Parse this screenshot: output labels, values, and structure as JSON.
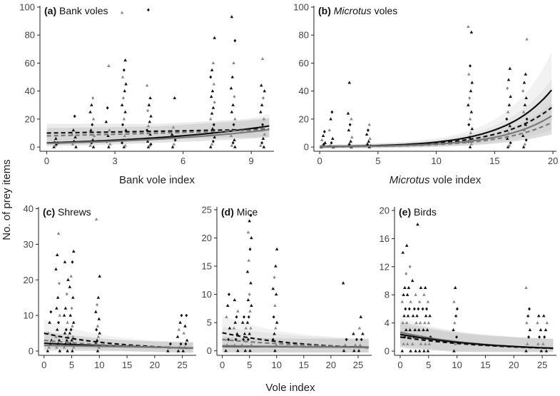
{
  "figure": {
    "shared_ylabel": "No. of prey items",
    "shared_xlabel_bottom": "Vole index"
  },
  "chart_data": [
    {
      "type": "scatter",
      "panel_letter": "(a)",
      "panel_title": "Bank voles",
      "title_italic": false,
      "xlabel": "Bank vole index",
      "xlabel_italic_part": "",
      "xlim": [
        -0.3,
        10.0
      ],
      "ylim": [
        -3,
        101
      ],
      "xticks": [
        "0",
        "3",
        "6",
        "9"
      ],
      "yticks": [
        "0",
        "20",
        "40",
        "60",
        "80",
        "100"
      ],
      "xtick_values": [
        0,
        3,
        6,
        9
      ],
      "ytick_values": [
        0,
        20,
        40,
        60,
        80,
        100
      ],
      "curves": [
        {
          "name": "solid black",
          "color": "#111111",
          "dash": "",
          "a": 3.0,
          "b": 0.165,
          "band": 0.55
        },
        {
          "name": "dashed black",
          "color": "#111111",
          "dash": "6,4",
          "a": 10.0,
          "b": 0.025,
          "band": 0.6
        },
        {
          "name": "solid grey",
          "color": "#7a7a7a",
          "dash": "",
          "a": 2.6,
          "b": 0.16,
          "band": 0.65
        },
        {
          "name": "dashed grey",
          "color": "#7a7a7a",
          "dash": "6,4",
          "a": 8.0,
          "b": 0.045,
          "band": 0.6
        }
      ],
      "point_columns": [
        {
          "x": 0.4,
          "ys": [
            0,
            1,
            2,
            3,
            4,
            6
          ]
        },
        {
          "x": 1.2,
          "ys": [
            0,
            2,
            4,
            7,
            9,
            12,
            22
          ]
        },
        {
          "x": 2.0,
          "ys": [
            0,
            1,
            3,
            5,
            8,
            12,
            16,
            20,
            25,
            30,
            35
          ]
        },
        {
          "x": 2.7,
          "ys": [
            0,
            2,
            4,
            8,
            12,
            18,
            28,
            58
          ]
        },
        {
          "x": 3.4,
          "ys": [
            0,
            1,
            3,
            5,
            8,
            12,
            16,
            20,
            25,
            30,
            35,
            40,
            45,
            50,
            55,
            62,
            96
          ]
        },
        {
          "x": 4.5,
          "ys": [
            0,
            1,
            2,
            4,
            6,
            9,
            12,
            15,
            18,
            22,
            26,
            30,
            35,
            44,
            98
          ]
        },
        {
          "x": 5.6,
          "ys": [
            0,
            2,
            5,
            9,
            14,
            35
          ]
        },
        {
          "x": 7.3,
          "ys": [
            0,
            2,
            4,
            7,
            10,
            13,
            16,
            20,
            24,
            28,
            32,
            36,
            40,
            45,
            50,
            55,
            60,
            78
          ]
        },
        {
          "x": 8.2,
          "ys": [
            0,
            1,
            3,
            5,
            8,
            12,
            16,
            20,
            25,
            30,
            36,
            42,
            50,
            60,
            76,
            93
          ]
        },
        {
          "x": 9.5,
          "ys": [
            0,
            1,
            3,
            6,
            9,
            12,
            16,
            20,
            25,
            30,
            35,
            40,
            44,
            63
          ]
        }
      ]
    },
    {
      "type": "scatter",
      "panel_letter": "(b)",
      "panel_title": "voles",
      "panel_title_italic_prefix": "Microtus",
      "title_italic": true,
      "xlabel": " vole index",
      "xlabel_italic_part": "Microtus",
      "xlim": [
        -0.5,
        20.3
      ],
      "ylim": [
        -3,
        101
      ],
      "xticks": [
        "0",
        "5",
        "10",
        "15",
        "20"
      ],
      "yticks": [
        "0",
        "20",
        "40",
        "60",
        "80",
        "100"
      ],
      "xtick_values": [
        0,
        5,
        10,
        15,
        20
      ],
      "ytick_values": [
        0,
        20,
        40,
        60,
        80,
        100
      ],
      "curves": [
        {
          "name": "solid black",
          "color": "#111111",
          "dash": "",
          "a": 0.3,
          "b": 0.247,
          "band": 0.7
        },
        {
          "name": "dashed black",
          "color": "#111111",
          "dash": "6,4",
          "a": 0.28,
          "b": 0.232,
          "band": 0.75
        },
        {
          "name": "solid grey",
          "color": "#7a7a7a",
          "dash": "",
          "a": 0.2,
          "b": 0.237,
          "band": 0.75
        },
        {
          "name": "dashed grey",
          "color": "#7a7a7a",
          "dash": "6,4",
          "a": 0.18,
          "b": 0.23,
          "band": 0.8
        }
      ],
      "point_columns": [
        {
          "x": 0.3,
          "ys": [
            0,
            1,
            2,
            3,
            5,
            8,
            11
          ]
        },
        {
          "x": 1.0,
          "ys": [
            0,
            1,
            3,
            6,
            12,
            20,
            25
          ]
        },
        {
          "x": 2.6,
          "ys": [
            0,
            1,
            2,
            4,
            7,
            12,
            16,
            20,
            24,
            46
          ]
        },
        {
          "x": 4.2,
          "ys": [
            0,
            1,
            2,
            4,
            6,
            9,
            12,
            16
          ]
        },
        {
          "x": 12.9,
          "ys": [
            0,
            2,
            4,
            7,
            10,
            13,
            16,
            20,
            25,
            30,
            35,
            40,
            46,
            52,
            58,
            82,
            86
          ]
        },
        {
          "x": 16.2,
          "ys": [
            0,
            1,
            3,
            6,
            10,
            15,
            20,
            25,
            30,
            36,
            42,
            48,
            56
          ]
        },
        {
          "x": 17.6,
          "ys": [
            0,
            2,
            5,
            8,
            12,
            16,
            20,
            25,
            30,
            35,
            40,
            46,
            52,
            77
          ]
        }
      ]
    },
    {
      "type": "scatter",
      "panel_letter": "(c)",
      "panel_title": "Shrews",
      "title_italic": false,
      "xlabel": "",
      "xlim": [
        -1,
        27.5
      ],
      "ylim": [
        -1.2,
        40.5
      ],
      "xticks": [
        "0",
        "5",
        "10",
        "15",
        "20",
        "25"
      ],
      "yticks": [
        "0",
        "10",
        "20",
        "30",
        "40"
      ],
      "xtick_values": [
        0,
        5,
        10,
        15,
        20,
        25
      ],
      "ytick_values": [
        0,
        10,
        20,
        30,
        40
      ],
      "curves": [
        {
          "name": "dashed black",
          "color": "#111111",
          "dash": "6,4",
          "a": 5.0,
          "b": -0.07,
          "band": 0.6
        },
        {
          "name": "solid black",
          "color": "#111111",
          "dash": "",
          "a": 2.2,
          "b": -0.035,
          "band": 0.5
        },
        {
          "name": "solid grey",
          "color": "#7a7a7a",
          "dash": "",
          "a": 1.6,
          "b": -0.02,
          "band": 0.5
        },
        {
          "name": "dashed grey",
          "color": "#7a7a7a",
          "dash": "6,4",
          "a": 3.0,
          "b": -0.05,
          "band": 0.5
        }
      ],
      "point_columns": [
        {
          "x": 1.0,
          "ys": [
            0,
            1,
            2,
            3,
            5,
            8,
            11
          ]
        },
        {
          "x": 2.5,
          "ys": [
            0,
            1,
            2,
            3,
            4,
            6,
            8,
            10,
            12,
            15,
            19,
            23,
            27,
            33
          ]
        },
        {
          "x": 4.0,
          "ys": [
            0,
            1,
            2,
            3,
            4,
            5,
            6,
            8,
            10,
            12,
            16,
            20,
            25
          ]
        },
        {
          "x": 5.0,
          "ys": [
            0,
            1,
            2,
            3,
            4,
            5,
            6,
            7,
            8,
            10,
            12,
            15,
            18,
            21,
            25,
            28
          ]
        },
        {
          "x": 9.7,
          "ys": [
            0,
            1,
            2,
            3,
            4,
            5,
            6,
            7,
            9,
            11,
            13,
            15,
            21,
            37
          ]
        },
        {
          "x": 22.5,
          "ys": [
            0,
            1,
            2
          ]
        },
        {
          "x": 24.5,
          "ys": [
            0,
            1,
            2,
            4,
            6,
            8,
            10
          ]
        },
        {
          "x": 25.5,
          "ys": [
            0,
            1,
            2,
            3,
            5,
            7,
            10
          ]
        }
      ]
    },
    {
      "type": "scatter",
      "panel_letter": "(d)",
      "panel_title": "Mice",
      "title_italic": false,
      "xlabel": "",
      "xlim": [
        -1,
        27.5
      ],
      "ylim": [
        -0.8,
        25.5
      ],
      "xticks": [
        "0",
        "5",
        "10",
        "15",
        "20",
        "25"
      ],
      "yticks": [
        "0",
        "5",
        "10",
        "15",
        "20",
        "25"
      ],
      "xtick_values": [
        0,
        5,
        10,
        15,
        20,
        25
      ],
      "ytick_values": [
        0,
        5,
        10,
        15,
        20,
        25
      ],
      "curves": [
        {
          "name": "dashed black",
          "color": "#111111",
          "dash": "6,4",
          "a": 3.2,
          "b": -0.065,
          "band": 0.65
        },
        {
          "name": "dashed grey",
          "color": "#7a7a7a",
          "dash": "6,4",
          "a": 2.0,
          "b": -0.045,
          "band": 0.6
        },
        {
          "name": "solid black",
          "color": "#111111",
          "dash": "",
          "a": 0.8,
          "b": -0.008,
          "band": 0.5
        },
        {
          "name": "solid grey",
          "color": "#7a7a7a",
          "dash": "",
          "a": 0.9,
          "b": -0.015,
          "band": 0.5
        }
      ],
      "point_columns": [
        {
          "x": 1.0,
          "ys": [
            0,
            1,
            2,
            4,
            6,
            8,
            10
          ]
        },
        {
          "x": 2.5,
          "ys": [
            0,
            1,
            2,
            3,
            4,
            5,
            6,
            7,
            9
          ]
        },
        {
          "x": 4.0,
          "ys": [
            0,
            1,
            2,
            3,
            4,
            5,
            6
          ]
        },
        {
          "x": 5.0,
          "ys": [
            0,
            1,
            2,
            3,
            4,
            5,
            6,
            7,
            8,
            9,
            10,
            12,
            14,
            16,
            18,
            20,
            21,
            23,
            24
          ]
        },
        {
          "x": 9.7,
          "ys": [
            0,
            1,
            2,
            3,
            4,
            5,
            6,
            8,
            10,
            11,
            13,
            15,
            18
          ]
        },
        {
          "x": 22.5,
          "ys": [
            0,
            1,
            2,
            12
          ]
        },
        {
          "x": 24.5,
          "ys": [
            0,
            1,
            2,
            3
          ]
        },
        {
          "x": 25.5,
          "ys": [
            0,
            1,
            2,
            3,
            4,
            6
          ]
        }
      ]
    },
    {
      "type": "scatter",
      "panel_letter": "(e)",
      "panel_title": "Birds",
      "title_italic": false,
      "xlabel": "",
      "xlim": [
        -1,
        27.5
      ],
      "ylim": [
        -0.6,
        20.5
      ],
      "xticks": [
        "0",
        "5",
        "10",
        "15",
        "20",
        "25"
      ],
      "yticks": [
        "0",
        "4",
        "8",
        "12",
        "16",
        "20"
      ],
      "xtick_values": [
        0,
        5,
        10,
        15,
        20,
        25
      ],
      "ytick_values": [
        0,
        4,
        8,
        12,
        16,
        20
      ],
      "curves": [
        {
          "name": "solid grey",
          "color": "#7a7a7a",
          "dash": "",
          "a": 2.7,
          "b": -0.07,
          "band": 0.35
        },
        {
          "name": "dashed grey",
          "color": "#7a7a7a",
          "dash": "6,4",
          "a": 2.3,
          "b": -0.065,
          "band": 0.35
        },
        {
          "name": "solid black",
          "color": "#111111",
          "dash": "",
          "a": 2.4,
          "b": -0.065,
          "band": 0.3
        },
        {
          "name": "dashed black",
          "color": "#111111",
          "dash": "6,4",
          "a": 2.0,
          "b": -0.06,
          "band": 0.35
        }
      ],
      "point_columns": [
        {
          "x": 0.7,
          "ys": [
            0,
            1,
            2,
            3,
            4,
            5,
            6,
            7,
            8,
            9,
            11,
            14
          ]
        },
        {
          "x": 1.5,
          "ys": [
            0,
            1,
            2,
            3,
            4,
            5,
            6,
            7,
            8,
            9,
            12,
            15
          ]
        },
        {
          "x": 2.5,
          "ys": [
            0,
            1,
            2,
            3,
            4,
            5,
            6,
            8,
            10
          ]
        },
        {
          "x": 3.3,
          "ys": [
            0,
            1,
            2,
            3,
            4,
            5,
            6,
            7,
            9,
            18
          ]
        },
        {
          "x": 4.2,
          "ys": [
            0,
            1,
            2,
            3,
            4,
            5,
            6,
            8,
            9
          ]
        },
        {
          "x": 5.0,
          "ys": [
            0,
            1,
            2,
            3,
            4,
            5,
            6,
            7
          ]
        },
        {
          "x": 9.7,
          "ys": [
            0,
            1,
            2,
            3,
            4,
            5,
            6,
            7,
            9
          ]
        },
        {
          "x": 22.5,
          "ys": [
            0,
            1,
            2,
            3,
            4,
            5,
            6,
            9
          ]
        },
        {
          "x": 24.5,
          "ys": [
            0,
            1,
            2,
            3,
            4,
            5
          ]
        },
        {
          "x": 25.5,
          "ys": [
            0,
            1,
            2,
            3,
            4,
            5
          ]
        }
      ]
    }
  ]
}
